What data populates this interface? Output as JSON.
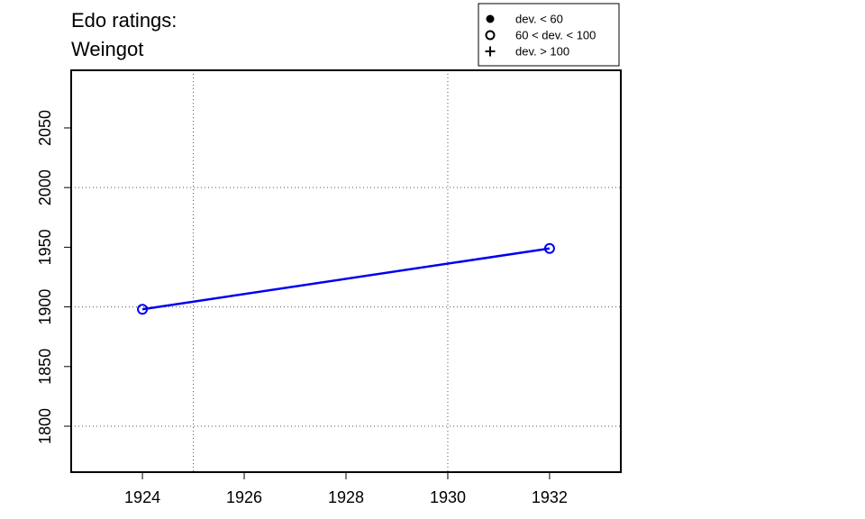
{
  "chart_data": {
    "type": "line",
    "title": "Edo ratings:",
    "subtitle": "Weingot",
    "x": [
      1924,
      1932
    ],
    "series": [
      {
        "color": "#0000ee",
        "marker": "open-circle",
        "values": [
          1898,
          1949
        ]
      }
    ],
    "xlim": [
      1922.6,
      1933.4
    ],
    "ylim": [
      1761.5,
      2098.3
    ],
    "xticks": [
      1924,
      1926,
      1928,
      1930,
      1932
    ],
    "yticks": [
      1800,
      1850,
      1900,
      1950,
      2000,
      2050
    ],
    "xgrid": [
      1925,
      1930
    ],
    "ygrid": [
      1800,
      1900,
      2000
    ],
    "legend_position": "top-right",
    "legend": [
      {
        "marker": "filled-circle",
        "label": "dev. < 60"
      },
      {
        "marker": "open-circle",
        "label": "60 < dev. < 100"
      },
      {
        "marker": "plus",
        "label": "dev. > 100"
      }
    ]
  }
}
